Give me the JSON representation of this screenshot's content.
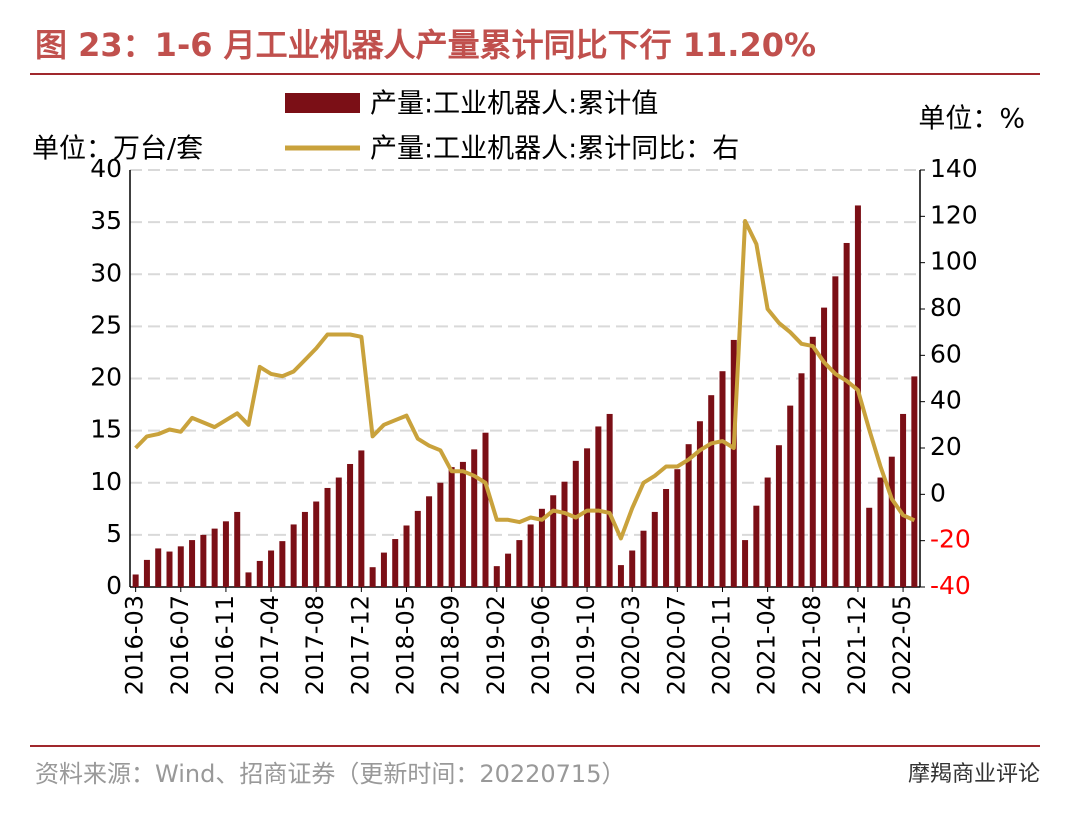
{
  "chart_data": {
    "type": "bar-line",
    "title": "图 23：1-6 月工业机器人产量累计同比下行 11.20%",
    "left_unit": "单位：万台/套",
    "right_unit": "单位：%",
    "source": "资料来源：Wind、招商证券（更新时间：20220715）",
    "watermark": "摩羯商业评论",
    "categories": [
      "2016-03",
      null,
      null,
      null,
      "2016-07",
      null,
      null,
      null,
      "2016-11",
      null,
      null,
      null,
      "2017-04",
      null,
      null,
      null,
      "2017-08",
      null,
      null,
      null,
      "2017-12",
      null,
      null,
      null,
      "2018-05",
      null,
      null,
      null,
      "2018-09",
      null,
      null,
      null,
      "2019-02",
      null,
      null,
      null,
      "2019-06",
      null,
      null,
      null,
      "2019-10",
      null,
      null,
      null,
      "2020-03",
      null,
      null,
      null,
      "2020-07",
      null,
      null,
      null,
      "2020-11",
      null,
      null,
      null,
      "2021-04",
      null,
      null,
      null,
      "2021-08",
      null,
      null,
      null,
      "2021-12",
      null,
      null,
      null,
      "2022-05",
      null
    ],
    "series": [
      {
        "name": "产量:工业机器人:累计值",
        "type": "bar",
        "color": "#7b0f16",
        "values": [
          1.2,
          2.6,
          3.7,
          3.4,
          3.9,
          4.5,
          5.0,
          5.6,
          6.3,
          7.2,
          1.4,
          2.5,
          3.5,
          4.4,
          6.0,
          7.2,
          8.2,
          9.5,
          10.5,
          11.8,
          13.1,
          1.9,
          3.3,
          4.6,
          5.9,
          7.3,
          8.7,
          10.0,
          11.5,
          12.0,
          13.2,
          14.8,
          2.0,
          3.2,
          4.5,
          6.0,
          7.5,
          8.8,
          10.1,
          12.1,
          13.3,
          15.4,
          16.6,
          2.1,
          3.5,
          5.4,
          7.2,
          9.4,
          11.3,
          13.7,
          15.9,
          18.4,
          20.7,
          23.7,
          4.5,
          7.8,
          10.5,
          13.6,
          17.4,
          20.5,
          24.0,
          26.8,
          29.8,
          33.0,
          36.6,
          7.6,
          10.5,
          12.5,
          16.6,
          20.2
        ]
      },
      {
        "name": "产量:工业机器人:累计同比：右",
        "type": "line",
        "axis": "y2",
        "color": "#c9a23c",
        "values": [
          20,
          25,
          26,
          28,
          27,
          33,
          31,
          29,
          32,
          35,
          30,
          55,
          52,
          51,
          53,
          58,
          63,
          69,
          69,
          69,
          68,
          25,
          30,
          32,
          34,
          24,
          21,
          19,
          10,
          10,
          8,
          5,
          -11,
          -11,
          -12,
          -10,
          -11,
          -7,
          -8,
          -10,
          -7,
          -7,
          -8,
          -19,
          -6,
          5,
          8,
          12,
          12,
          15,
          19,
          22,
          23,
          20,
          118,
          108,
          80,
          74,
          70,
          65,
          64,
          57,
          52,
          49,
          45,
          28,
          12,
          -2,
          -9,
          -11.2
        ]
      }
    ],
    "ylim": [
      0,
      40
    ],
    "yticks": [
      0,
      5,
      10,
      15,
      20,
      25,
      30,
      35,
      40
    ],
    "y2lim": [
      -40,
      140
    ],
    "y2ticks": [
      -40,
      -20,
      0,
      20,
      40,
      60,
      80,
      100,
      120,
      140
    ],
    "y2_negative_tick_color": "#ff0000",
    "grid": true
  }
}
